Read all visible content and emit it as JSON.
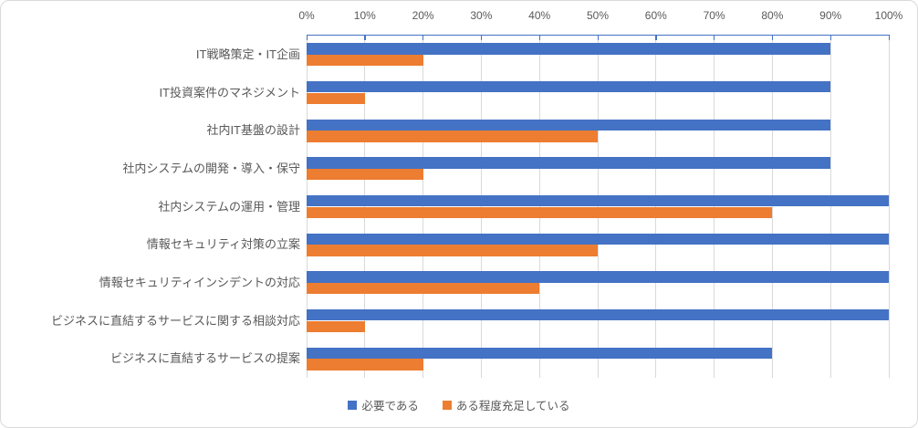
{
  "chart_data": {
    "type": "bar",
    "orientation": "horizontal",
    "title": "",
    "categories": [
      "IT戦略策定・IT企画",
      "IT投資案件のマネジメント",
      "社内IT基盤の設計",
      "社内システムの開発・導入・保守",
      "社内システムの運用・管理",
      "情報セキュリティ対策の立案",
      "情報セキュリティインシデントの対応",
      "ビジネスに直結するサービスに関する相談対応",
      "ビジネスに直結するサービスの提案"
    ],
    "series": [
      {
        "name": "必要である",
        "color": "#4472C4",
        "values": [
          90,
          90,
          90,
          90,
          100,
          100,
          100,
          100,
          80
        ]
      },
      {
        "name": "ある程度充足している",
        "color": "#ED7D31",
        "values": [
          20,
          10,
          50,
          20,
          80,
          50,
          40,
          10,
          20
        ]
      }
    ],
    "x_axis": {
      "position": "top",
      "min": 0,
      "max": 100,
      "step": 10,
      "tick_labels": [
        "0%",
        "10%",
        "20%",
        "30%",
        "40%",
        "50%",
        "60%",
        "70%",
        "80%",
        "90%",
        "100%"
      ]
    },
    "grid": true,
    "legend_position": "bottom",
    "colors": {
      "axis_line": "#4472C4",
      "gridline": "#D9D9D9",
      "text": "#595959",
      "border": "#D9D9D9",
      "background": "#FFFFFF"
    }
  }
}
